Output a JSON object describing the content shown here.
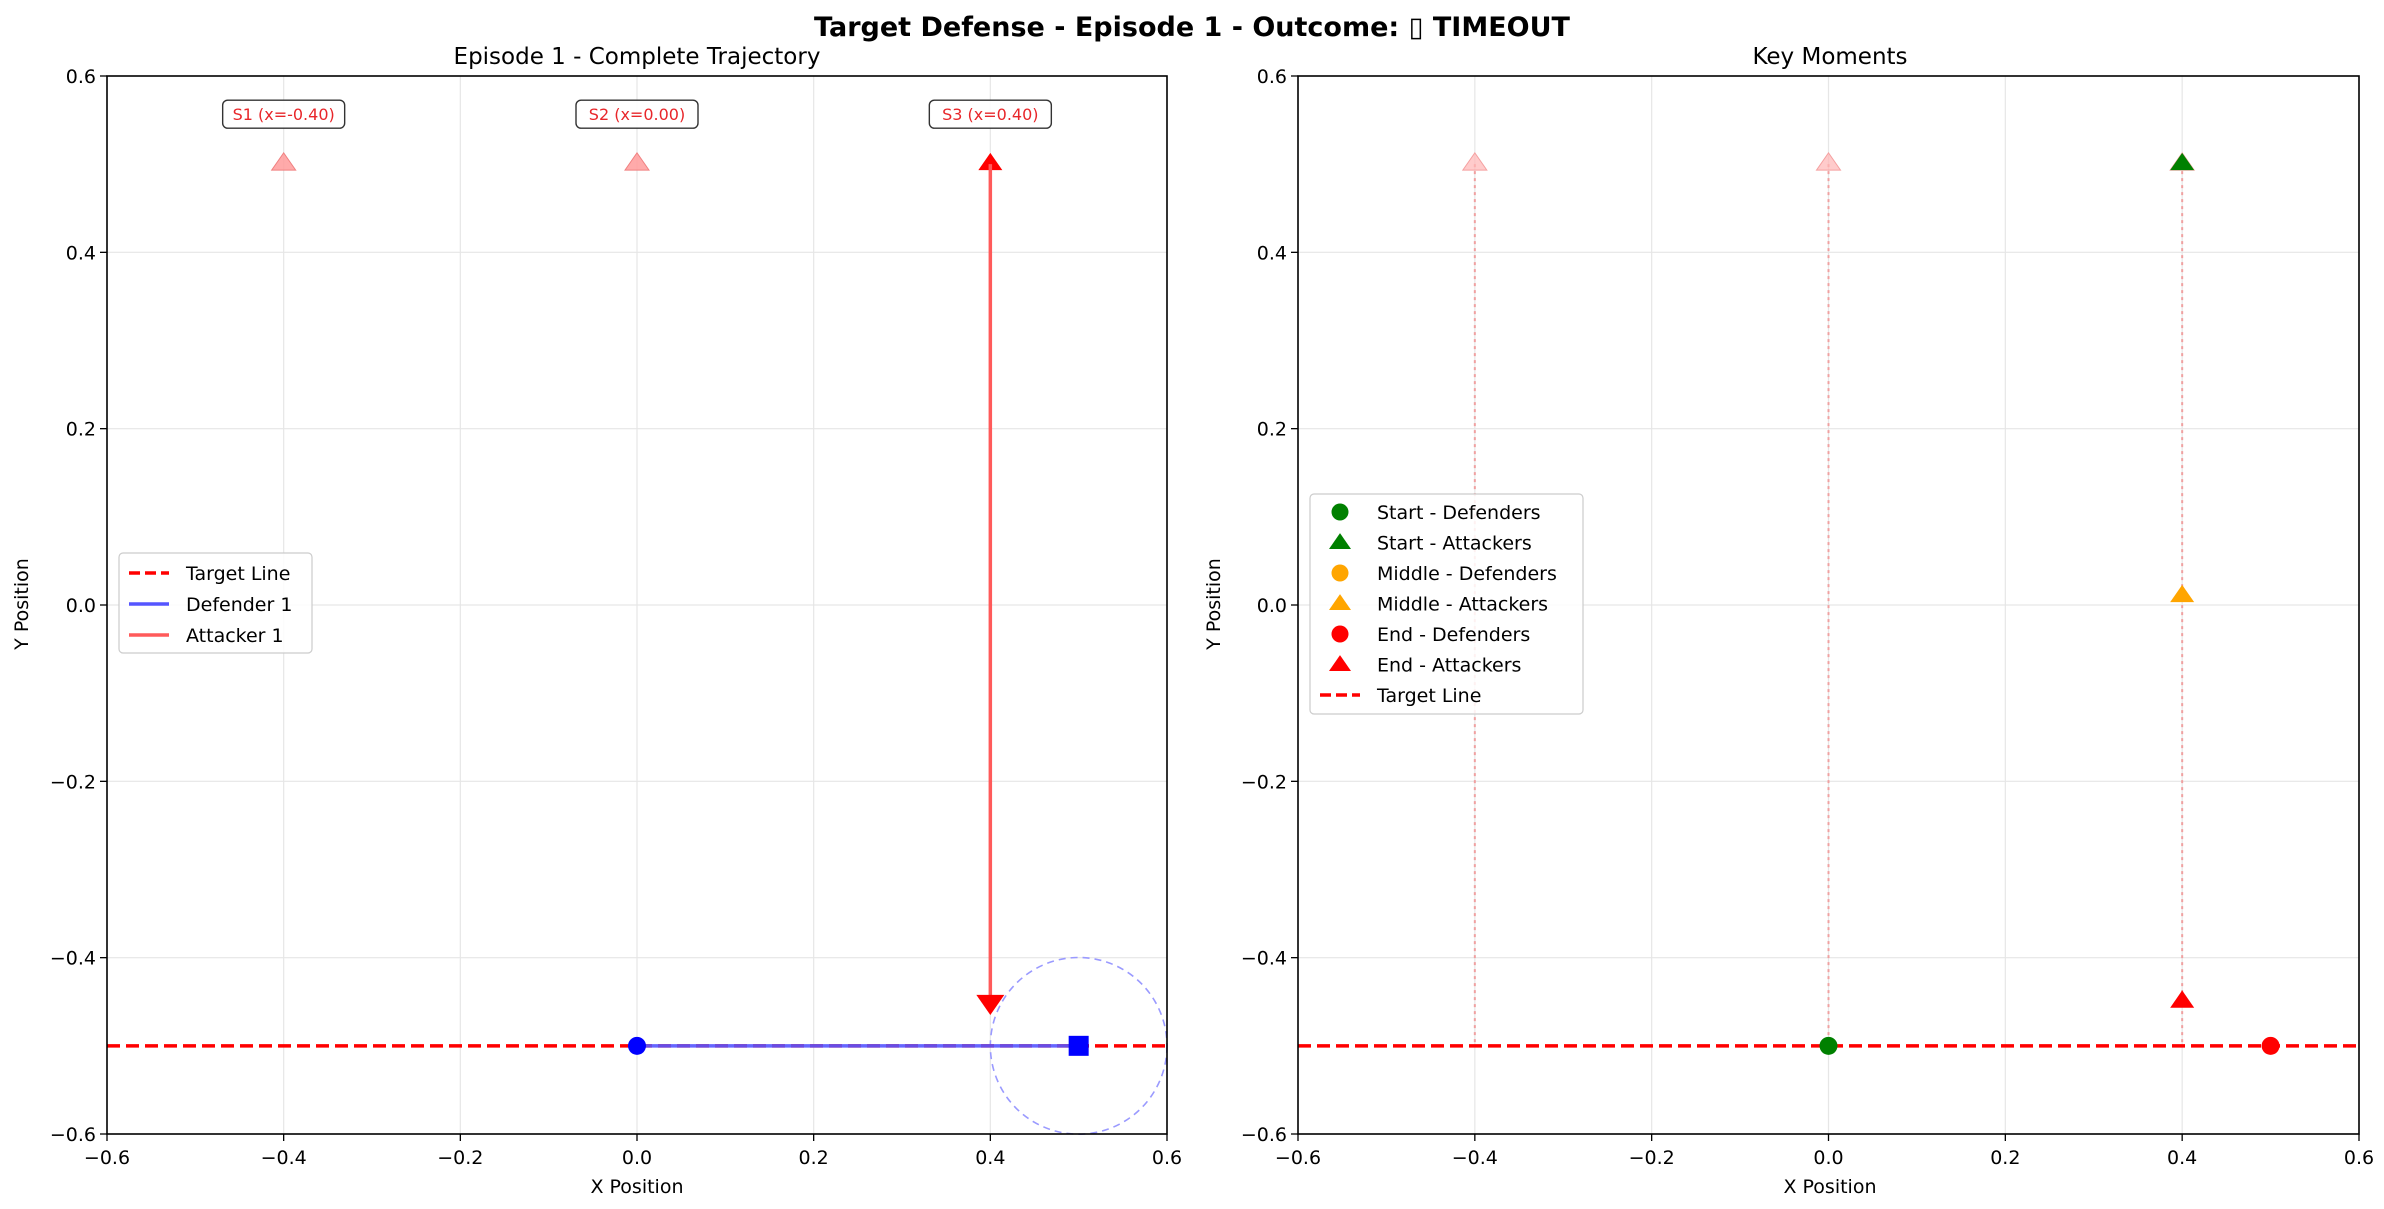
{
  "figure": {
    "suptitle": "Target Defense - Episode 1 - Outcome: ▯ TIMEOUT"
  },
  "colors": {
    "target_line": "#ff0000",
    "defender": "#0000ff",
    "attacker": "#ff0000",
    "start": "#008000",
    "middle": "#ffa500",
    "end": "#ff0000",
    "grid": "#e6e6e6"
  },
  "chart_data": [
    {
      "type": "line",
      "title": "Episode 1 - Complete Trajectory",
      "xlabel": "X Position",
      "ylabel": "Y Position",
      "xlim": [
        -0.6,
        0.6
      ],
      "ylim": [
        -0.6,
        0.6
      ],
      "xticks": [
        -0.6,
        -0.4,
        -0.2,
        0.0,
        0.2,
        0.4,
        0.6
      ],
      "yticks": [
        -0.6,
        -0.4,
        -0.2,
        0.0,
        0.2,
        0.4,
        0.6
      ],
      "xtick_labels": [
        "−0.6",
        "−0.4",
        "−0.2",
        "0.0",
        "0.2",
        "0.4",
        "0.6"
      ],
      "ytick_labels": [
        "−0.6",
        "−0.4",
        "−0.2",
        "0.0",
        "0.2",
        "0.4",
        "0.6"
      ],
      "grid": true,
      "legend_position": "center-left",
      "legend": [
        "Target Line",
        "Defender 1",
        "Attacker 1"
      ],
      "target_line_y": -0.5,
      "spawn_points": [
        {
          "label": "S1 (x=-0.40)",
          "x": -0.4,
          "y": 0.5,
          "active": false
        },
        {
          "label": "S2 (x=0.00)",
          "x": 0.0,
          "y": 0.5,
          "active": false
        },
        {
          "label": "S3 (x=0.40)",
          "x": 0.4,
          "y": 0.5,
          "active": true
        }
      ],
      "series": [
        {
          "name": "Defender 1",
          "x": [
            0.0,
            0.5
          ],
          "y": [
            -0.5,
            -0.5
          ],
          "start_marker": "circle",
          "end_marker": "square",
          "capture_radius": 0.1
        },
        {
          "name": "Attacker 1",
          "x": [
            0.4,
            0.4
          ],
          "y": [
            0.5,
            -0.45
          ],
          "start_marker": "triangle-up",
          "end_marker": "triangle-down"
        }
      ]
    },
    {
      "type": "scatter",
      "title": "Key Moments",
      "xlabel": "X Position",
      "ylabel": "Y Position",
      "xlim": [
        -0.6,
        0.6
      ],
      "ylim": [
        -0.6,
        0.6
      ],
      "xticks": [
        -0.6,
        -0.4,
        -0.2,
        0.0,
        0.2,
        0.4,
        0.6
      ],
      "yticks": [
        -0.6,
        -0.4,
        -0.2,
        0.0,
        0.2,
        0.4,
        0.6
      ],
      "xtick_labels": [
        "−0.6",
        "−0.4",
        "−0.2",
        "0.0",
        "0.2",
        "0.4",
        "0.6"
      ],
      "ytick_labels": [
        "−0.6",
        "−0.4",
        "−0.2",
        "0.0",
        "0.2",
        "0.4",
        "0.6"
      ],
      "grid": true,
      "legend_position": "center-left",
      "legend": [
        "Start - Defenders",
        "Start - Attackers",
        "Middle - Defenders",
        "Middle - Attackers",
        "End - Defenders",
        "End - Attackers",
        "Target Line"
      ],
      "target_line_y": -0.5,
      "spawn_points": [
        {
          "x": -0.4,
          "y": 0.5
        },
        {
          "x": 0.0,
          "y": 0.5
        },
        {
          "x": 0.4,
          "y": 0.5
        }
      ],
      "points": [
        {
          "name": "Start - Defenders",
          "x": 0.0,
          "y": -0.5,
          "marker": "circle",
          "color": "#008000"
        },
        {
          "name": "Start - Attackers",
          "x": 0.4,
          "y": 0.5,
          "marker": "triangle",
          "color": "#008000"
        },
        {
          "name": "Middle - Attackers",
          "x": 0.4,
          "y": 0.01,
          "marker": "triangle",
          "color": "#ffa500"
        },
        {
          "name": "End - Defenders",
          "x": 0.5,
          "y": -0.5,
          "marker": "circle",
          "color": "#ff0000"
        },
        {
          "name": "End - Attackers",
          "x": 0.4,
          "y": -0.45,
          "marker": "triangle",
          "color": "#ff0000"
        }
      ]
    }
  ]
}
